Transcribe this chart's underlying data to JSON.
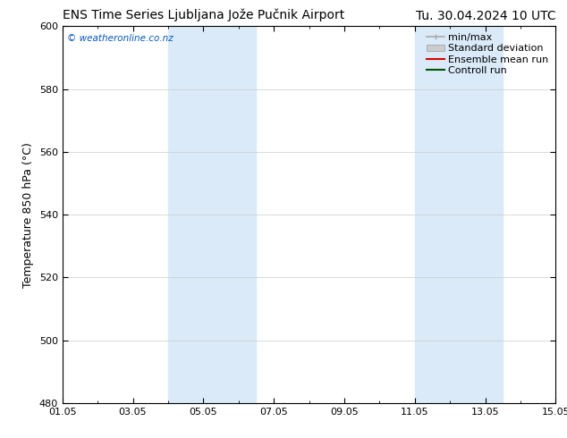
{
  "title_left": "ENS Time Series Ljubljana Jože Pučnik Airport",
  "title_right": "Tu. 30.04.2024 10 UTC",
  "ylabel": "Temperature 850 hPa (°C)",
  "watermark": "© weatheronline.co.nz",
  "watermark_color": "#0055cc",
  "ylim": [
    480,
    600
  ],
  "yticks": [
    480,
    500,
    520,
    540,
    560,
    580,
    600
  ],
  "xtick_labels": [
    "01.05",
    "03.05",
    "05.05",
    "07.05",
    "09.05",
    "11.05",
    "13.05",
    "15.05"
  ],
  "xtick_positions_days": [
    0,
    2,
    4,
    6,
    8,
    10,
    12,
    14
  ],
  "xlim": [
    0,
    14
  ],
  "shaded_bands": [
    {
      "xstart_day": 3.0,
      "xend_day": 5.5,
      "color": "#daeaf8"
    },
    {
      "xstart_day": 10.0,
      "xend_day": 12.5,
      "color": "#daeaf8"
    }
  ],
  "legend_items": [
    {
      "label": "min/max",
      "color": "#aaaaaa",
      "style": "minmax"
    },
    {
      "label": "Standard deviation",
      "color": "#cccccc",
      "style": "stddev"
    },
    {
      "label": "Ensemble mean run",
      "color": "#dd0000",
      "style": "line"
    },
    {
      "label": "Controll run",
      "color": "#005500",
      "style": "line"
    }
  ],
  "bg_color": "#ffffff",
  "plot_bg_color": "#ffffff",
  "grid_color": "#cccccc",
  "title_fontsize": 10,
  "axis_label_fontsize": 9,
  "tick_fontsize": 8,
  "legend_fontsize": 8
}
